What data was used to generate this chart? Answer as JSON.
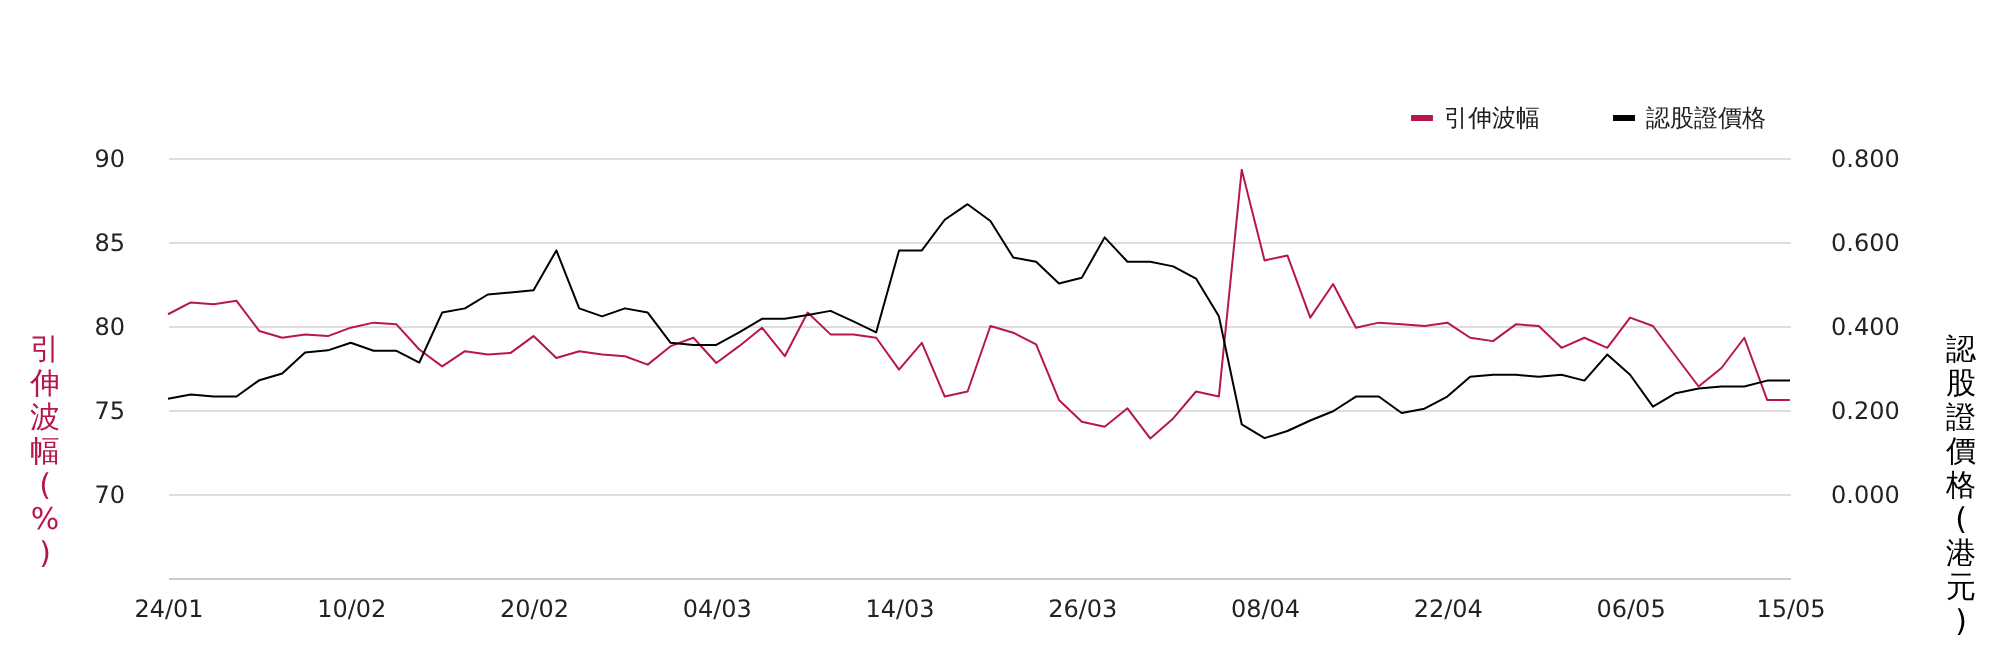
{
  "chart_data": {
    "type": "line",
    "ylabel": "引伸波幅(%)",
    "y2label": "認股證價格(港元)",
    "categories": [
      "24/01",
      null,
      null,
      null,
      null,
      null,
      null,
      null,
      "10/02",
      null,
      null,
      null,
      null,
      null,
      null,
      null,
      "20/02",
      null,
      null,
      null,
      null,
      null,
      null,
      null,
      "04/03",
      null,
      null,
      null,
      null,
      null,
      null,
      null,
      "14/03",
      null,
      null,
      null,
      null,
      null,
      null,
      null,
      "26/03",
      null,
      null,
      null,
      null,
      null,
      null,
      null,
      "08/04",
      null,
      null,
      null,
      null,
      null,
      null,
      null,
      "22/04",
      null,
      null,
      null,
      null,
      null,
      null,
      null,
      "06/05",
      null,
      null,
      null,
      null,
      null,
      null,
      "15/05"
    ],
    "series": [
      {
        "name": "引伸波幅",
        "color": "#b8174a",
        "values": [
          80.7,
          81.4,
          81.3,
          81.5,
          79.7,
          79.3,
          79.5,
          79.4,
          79.9,
          80.2,
          80.1,
          78.6,
          77.6,
          78.5,
          78.3,
          78.4,
          79.4,
          78.1,
          78.5,
          78.3,
          78.2,
          77.7,
          78.8,
          79.3,
          77.8,
          78.8,
          79.9,
          78.2,
          80.8,
          79.5,
          79.5,
          79.3,
          77.4,
          79.0,
          75.8,
          76.1,
          80.0,
          79.6,
          78.9,
          75.6,
          74.3,
          74.0,
          75.1,
          73.3,
          74.5,
          76.1,
          75.8,
          89.3,
          83.9,
          84.2,
          80.5,
          82.5,
          79.9,
          80.2,
          80.1,
          80.0,
          80.2,
          79.3,
          79.1,
          80.1,
          80.0,
          78.7,
          79.3,
          78.7,
          80.5,
          80.0,
          78.2,
          76.4,
          77.5,
          79.3,
          75.6,
          75.6
        ]
      },
      {
        "name": "認股證價格",
        "color": "#000000",
        "axis": "y2",
        "values": [
          0.227,
          0.237,
          0.232,
          0.232,
          0.271,
          0.287,
          0.337,
          0.342,
          0.36,
          0.341,
          0.341,
          0.313,
          0.432,
          0.442,
          0.475,
          0.48,
          0.485,
          0.58,
          0.442,
          0.423,
          0.442,
          0.432,
          0.36,
          0.355,
          0.355,
          0.385,
          0.417,
          0.417,
          0.426,
          0.436,
          0.411,
          0.385,
          0.58,
          0.58,
          0.653,
          0.69,
          0.65,
          0.563,
          0.553,
          0.501,
          0.515,
          0.611,
          0.553,
          0.553,
          0.542,
          0.513,
          0.423,
          0.166,
          0.133,
          0.15,
          0.175,
          0.197,
          0.232,
          0.232,
          0.193,
          0.203,
          0.232,
          0.279,
          0.284,
          0.284,
          0.279,
          0.284,
          0.27,
          0.332,
          0.284,
          0.208,
          0.24,
          0.251,
          0.256,
          0.256,
          0.27,
          0.27
        ]
      }
    ],
    "ylim": [
      65,
      90
    ],
    "yticks": [
      70,
      75,
      80,
      85,
      90
    ],
    "y2lim": [
      -0.2,
      0.8
    ],
    "y2ticks": [
      {
        "value": 0,
        "label": "0.000"
      },
      {
        "value": 0.2,
        "label": "0.200"
      },
      {
        "value": 0.4,
        "label": "0.400"
      },
      {
        "value": 0.6,
        "label": "0.600"
      },
      {
        "value": 0.8,
        "label": "0.800"
      }
    ],
    "grid": "y",
    "legend": "top right",
    "marker": "none",
    "line_style": "solid"
  }
}
